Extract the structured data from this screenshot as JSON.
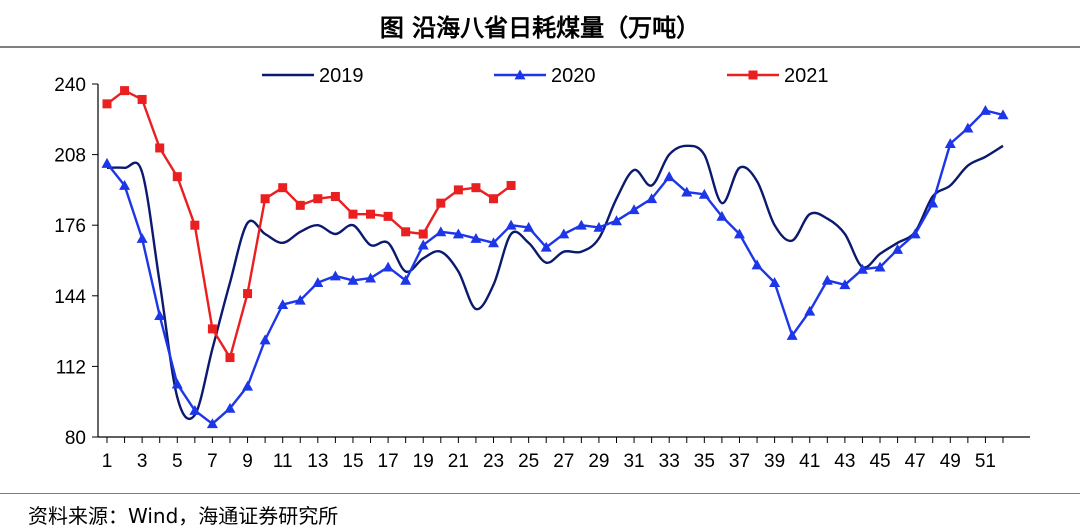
{
  "header": {
    "title": "图  沿海八省日耗煤量（万吨）"
  },
  "footer": {
    "source": "资料来源：Wind，海通证券研究所"
  },
  "chart_data": {
    "type": "line",
    "title": "图  沿海八省日耗煤量（万吨）",
    "xlabel": "",
    "ylabel": "",
    "ylim": [
      80,
      240
    ],
    "yticks": [
      80,
      112,
      144,
      176,
      208,
      240
    ],
    "xlim": [
      1,
      52
    ],
    "xticks": [
      1,
      3,
      5,
      7,
      9,
      11,
      13,
      15,
      17,
      19,
      21,
      23,
      25,
      27,
      29,
      31,
      33,
      35,
      37,
      39,
      41,
      43,
      45,
      47,
      49,
      51
    ],
    "grid": false,
    "legend_position": "top",
    "series": [
      {
        "name": "2019",
        "color": "#0b1a6e",
        "marker": "none",
        "smooth": true,
        "x": [
          1,
          2,
          3,
          4,
          5,
          6,
          7,
          8,
          9,
          10,
          11,
          12,
          13,
          14,
          15,
          16,
          17,
          18,
          19,
          20,
          21,
          22,
          23,
          24,
          25,
          26,
          27,
          28,
          29,
          30,
          31,
          32,
          33,
          34,
          35,
          36,
          37,
          38,
          39,
          40,
          41,
          42,
          43,
          44,
          45,
          46,
          47,
          48,
          49,
          50,
          51,
          52
        ],
        "values": [
          202,
          202,
          200,
          150,
          98,
          90,
          120,
          150,
          177,
          172,
          168,
          173,
          176,
          172,
          176,
          167,
          168,
          155,
          161,
          164,
          155,
          138,
          149,
          172,
          168,
          159,
          164,
          164,
          170,
          188,
          201,
          194,
          208,
          212,
          208,
          186,
          202,
          196,
          176,
          169,
          181,
          179,
          172,
          157,
          163,
          168,
          173,
          189,
          194,
          203,
          207,
          212
        ]
      },
      {
        "name": "2020",
        "color": "#1c36e8",
        "marker": "triangle",
        "smooth": false,
        "x": [
          1,
          2,
          3,
          4,
          5,
          6,
          7,
          8,
          9,
          10,
          11,
          12,
          13,
          14,
          15,
          16,
          17,
          18,
          19,
          20,
          21,
          22,
          23,
          24,
          25,
          26,
          27,
          28,
          29,
          30,
          31,
          32,
          33,
          34,
          35,
          36,
          37,
          38,
          39,
          40,
          41,
          42,
          43,
          44,
          45,
          46,
          47,
          48,
          49,
          50,
          51,
          52
        ],
        "values": [
          204,
          194,
          170,
          135,
          104,
          92,
          86,
          93,
          103,
          124,
          140,
          142,
          150,
          153,
          151,
          152,
          157,
          151,
          167,
          173,
          172,
          170,
          168,
          176,
          175,
          166,
          172,
          176,
          175,
          178,
          183,
          188,
          198,
          191,
          190,
          180,
          172,
          158,
          150,
          126,
          137,
          151,
          149,
          156,
          157,
          165,
          172,
          186,
          213,
          220,
          228,
          226
        ]
      },
      {
        "name": "2021",
        "color": "#ea1f1f",
        "marker": "square",
        "smooth": false,
        "x": [
          1,
          2,
          3,
          4,
          5,
          6,
          7,
          8,
          9,
          10,
          11,
          12,
          13,
          14,
          15,
          16,
          17,
          18,
          19,
          20,
          21,
          22,
          23,
          24
        ],
        "values": [
          231,
          237,
          233,
          211,
          198,
          176,
          129,
          116,
          145,
          188,
          193,
          185,
          188,
          189,
          181,
          181,
          180,
          173,
          172,
          186,
          192,
          193,
          188,
          194
        ]
      }
    ]
  }
}
